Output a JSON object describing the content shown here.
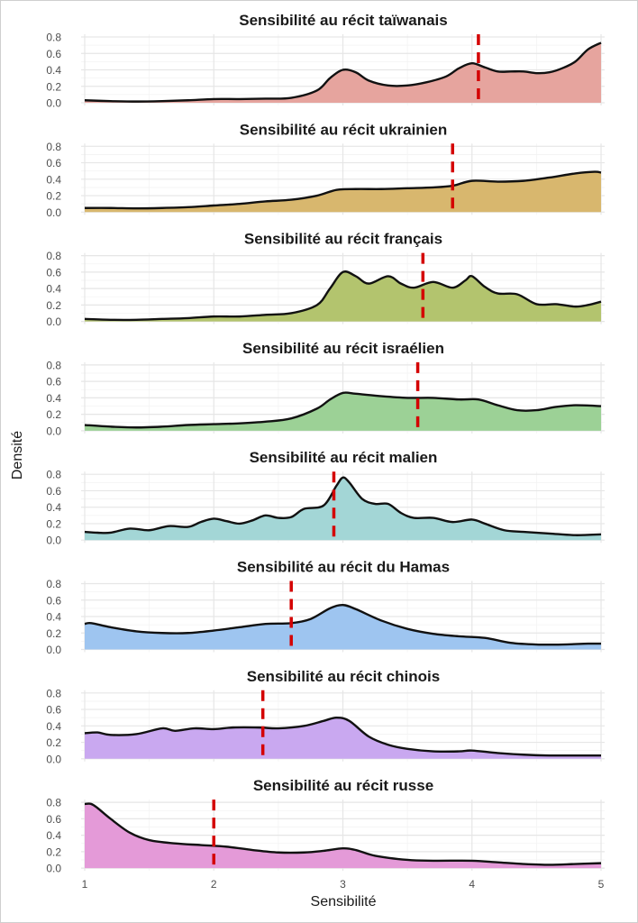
{
  "chart_data": {
    "type": "area",
    "xlabel": "Sensibilité",
    "ylabel": "Densité",
    "xlim": [
      1,
      5
    ],
    "ylim": [
      0,
      0.8
    ],
    "x_ticks": [
      "1",
      "2",
      "3",
      "4",
      "5"
    ],
    "y_ticks": [
      "0.0",
      "0.2",
      "0.4",
      "0.6",
      "0.8"
    ],
    "grid": true,
    "panels": [
      {
        "title": "Sensibilité au récit taïwanais",
        "fill": "#E6A49E",
        "mean_line": 4.05,
        "points": [
          [
            1.0,
            0.03
          ],
          [
            1.2,
            0.02
          ],
          [
            1.4,
            0.015
          ],
          [
            1.6,
            0.02
          ],
          [
            1.8,
            0.03
          ],
          [
            2.0,
            0.045
          ],
          [
            2.2,
            0.045
          ],
          [
            2.4,
            0.05
          ],
          [
            2.6,
            0.06
          ],
          [
            2.8,
            0.15
          ],
          [
            2.9,
            0.3
          ],
          [
            3.0,
            0.4
          ],
          [
            3.1,
            0.37
          ],
          [
            3.2,
            0.27
          ],
          [
            3.35,
            0.21
          ],
          [
            3.5,
            0.21
          ],
          [
            3.65,
            0.25
          ],
          [
            3.8,
            0.32
          ],
          [
            3.9,
            0.42
          ],
          [
            4.0,
            0.48
          ],
          [
            4.1,
            0.43
          ],
          [
            4.2,
            0.38
          ],
          [
            4.3,
            0.38
          ],
          [
            4.4,
            0.38
          ],
          [
            4.5,
            0.36
          ],
          [
            4.6,
            0.37
          ],
          [
            4.7,
            0.42
          ],
          [
            4.8,
            0.5
          ],
          [
            4.9,
            0.65
          ],
          [
            5.0,
            0.73
          ]
        ]
      },
      {
        "title": "Sensibilité au récit ukrainien",
        "fill": "#D8B76E",
        "mean_line": 3.85,
        "points": [
          [
            1.0,
            0.05
          ],
          [
            1.2,
            0.05
          ],
          [
            1.4,
            0.045
          ],
          [
            1.6,
            0.05
          ],
          [
            1.8,
            0.06
          ],
          [
            2.0,
            0.08
          ],
          [
            2.2,
            0.1
          ],
          [
            2.4,
            0.13
          ],
          [
            2.6,
            0.15
          ],
          [
            2.8,
            0.2
          ],
          [
            2.95,
            0.27
          ],
          [
            3.1,
            0.28
          ],
          [
            3.3,
            0.28
          ],
          [
            3.5,
            0.29
          ],
          [
            3.7,
            0.3
          ],
          [
            3.85,
            0.32
          ],
          [
            4.0,
            0.38
          ],
          [
            4.2,
            0.37
          ],
          [
            4.4,
            0.38
          ],
          [
            4.6,
            0.42
          ],
          [
            4.8,
            0.47
          ],
          [
            4.95,
            0.49
          ],
          [
            5.0,
            0.48
          ]
        ]
      },
      {
        "title": "Sensibilité au récit français",
        "fill": "#B3C46E",
        "mean_line": 3.62,
        "points": [
          [
            1.0,
            0.03
          ],
          [
            1.2,
            0.02
          ],
          [
            1.4,
            0.02
          ],
          [
            1.6,
            0.03
          ],
          [
            1.8,
            0.04
          ],
          [
            2.0,
            0.06
          ],
          [
            2.2,
            0.06
          ],
          [
            2.4,
            0.08
          ],
          [
            2.6,
            0.1
          ],
          [
            2.8,
            0.2
          ],
          [
            2.9,
            0.4
          ],
          [
            3.0,
            0.6
          ],
          [
            3.1,
            0.55
          ],
          [
            3.2,
            0.46
          ],
          [
            3.35,
            0.55
          ],
          [
            3.45,
            0.46
          ],
          [
            3.55,
            0.41
          ],
          [
            3.7,
            0.48
          ],
          [
            3.85,
            0.41
          ],
          [
            3.95,
            0.5
          ],
          [
            4.0,
            0.55
          ],
          [
            4.1,
            0.42
          ],
          [
            4.2,
            0.34
          ],
          [
            4.35,
            0.33
          ],
          [
            4.5,
            0.21
          ],
          [
            4.65,
            0.21
          ],
          [
            4.8,
            0.18
          ],
          [
            4.9,
            0.2
          ],
          [
            5.0,
            0.24
          ]
        ]
      },
      {
        "title": "Sensibilité au récit israélien",
        "fill": "#9CD196",
        "mean_line": 3.58,
        "points": [
          [
            1.0,
            0.07
          ],
          [
            1.2,
            0.05
          ],
          [
            1.4,
            0.04
          ],
          [
            1.6,
            0.05
          ],
          [
            1.8,
            0.07
          ],
          [
            2.0,
            0.08
          ],
          [
            2.2,
            0.09
          ],
          [
            2.4,
            0.11
          ],
          [
            2.6,
            0.15
          ],
          [
            2.8,
            0.27
          ],
          [
            2.9,
            0.38
          ],
          [
            3.0,
            0.46
          ],
          [
            3.1,
            0.45
          ],
          [
            3.3,
            0.42
          ],
          [
            3.5,
            0.4
          ],
          [
            3.7,
            0.4
          ],
          [
            3.9,
            0.38
          ],
          [
            4.05,
            0.38
          ],
          [
            4.2,
            0.31
          ],
          [
            4.35,
            0.25
          ],
          [
            4.5,
            0.25
          ],
          [
            4.65,
            0.29
          ],
          [
            4.8,
            0.31
          ],
          [
            5.0,
            0.3
          ]
        ]
      },
      {
        "title": "Sensibilité au récit malien",
        "fill": "#A3D6D6",
        "mean_line": 2.93,
        "points": [
          [
            1.0,
            0.1
          ],
          [
            1.1,
            0.09
          ],
          [
            1.2,
            0.09
          ],
          [
            1.35,
            0.14
          ],
          [
            1.5,
            0.12
          ],
          [
            1.65,
            0.17
          ],
          [
            1.8,
            0.16
          ],
          [
            1.9,
            0.22
          ],
          [
            2.0,
            0.26
          ],
          [
            2.1,
            0.23
          ],
          [
            2.2,
            0.2
          ],
          [
            2.3,
            0.24
          ],
          [
            2.4,
            0.3
          ],
          [
            2.5,
            0.27
          ],
          [
            2.6,
            0.28
          ],
          [
            2.7,
            0.38
          ],
          [
            2.85,
            0.42
          ],
          [
            2.95,
            0.66
          ],
          [
            3.0,
            0.76
          ],
          [
            3.05,
            0.7
          ],
          [
            3.15,
            0.5
          ],
          [
            3.25,
            0.44
          ],
          [
            3.35,
            0.44
          ],
          [
            3.45,
            0.33
          ],
          [
            3.55,
            0.27
          ],
          [
            3.7,
            0.27
          ],
          [
            3.85,
            0.22
          ],
          [
            4.0,
            0.25
          ],
          [
            4.1,
            0.2
          ],
          [
            4.25,
            0.12
          ],
          [
            4.4,
            0.1
          ],
          [
            4.6,
            0.08
          ],
          [
            4.8,
            0.06
          ],
          [
            5.0,
            0.07
          ]
        ]
      },
      {
        "title": "Sensibilité au récit du Hamas",
        "fill": "#9EC5F0",
        "mean_line": 2.6,
        "points": [
          [
            1.0,
            0.31
          ],
          [
            1.05,
            0.32
          ],
          [
            1.2,
            0.27
          ],
          [
            1.4,
            0.22
          ],
          [
            1.6,
            0.2
          ],
          [
            1.8,
            0.2
          ],
          [
            2.0,
            0.23
          ],
          [
            2.2,
            0.27
          ],
          [
            2.4,
            0.31
          ],
          [
            2.6,
            0.32
          ],
          [
            2.75,
            0.37
          ],
          [
            2.9,
            0.5
          ],
          [
            3.0,
            0.54
          ],
          [
            3.1,
            0.49
          ],
          [
            3.3,
            0.35
          ],
          [
            3.5,
            0.25
          ],
          [
            3.7,
            0.19
          ],
          [
            3.9,
            0.16
          ],
          [
            4.1,
            0.14
          ],
          [
            4.3,
            0.08
          ],
          [
            4.5,
            0.06
          ],
          [
            4.7,
            0.06
          ],
          [
            4.9,
            0.07
          ],
          [
            5.0,
            0.07
          ]
        ]
      },
      {
        "title": "Sensibilité au récit chinois",
        "fill": "#C9A8F0",
        "mean_line": 2.38,
        "points": [
          [
            1.0,
            0.31
          ],
          [
            1.1,
            0.32
          ],
          [
            1.2,
            0.29
          ],
          [
            1.4,
            0.3
          ],
          [
            1.6,
            0.37
          ],
          [
            1.7,
            0.34
          ],
          [
            1.85,
            0.37
          ],
          [
            2.0,
            0.36
          ],
          [
            2.15,
            0.38
          ],
          [
            2.35,
            0.38
          ],
          [
            2.5,
            0.37
          ],
          [
            2.7,
            0.4
          ],
          [
            2.85,
            0.46
          ],
          [
            2.95,
            0.5
          ],
          [
            3.05,
            0.46
          ],
          [
            3.2,
            0.27
          ],
          [
            3.35,
            0.17
          ],
          [
            3.5,
            0.12
          ],
          [
            3.7,
            0.09
          ],
          [
            3.9,
            0.09
          ],
          [
            4.0,
            0.1
          ],
          [
            4.2,
            0.07
          ],
          [
            4.4,
            0.05
          ],
          [
            4.6,
            0.04
          ],
          [
            4.8,
            0.04
          ],
          [
            5.0,
            0.04
          ]
        ]
      },
      {
        "title": "Sensibilité au récit russe",
        "fill": "#E49AD8",
        "mean_line": 2.0,
        "points": [
          [
            1.0,
            0.78
          ],
          [
            1.05,
            0.78
          ],
          [
            1.1,
            0.73
          ],
          [
            1.2,
            0.6
          ],
          [
            1.35,
            0.43
          ],
          [
            1.5,
            0.34
          ],
          [
            1.7,
            0.3
          ],
          [
            1.9,
            0.28
          ],
          [
            2.1,
            0.26
          ],
          [
            2.3,
            0.22
          ],
          [
            2.5,
            0.19
          ],
          [
            2.7,
            0.19
          ],
          [
            2.85,
            0.21
          ],
          [
            3.0,
            0.24
          ],
          [
            3.1,
            0.22
          ],
          [
            3.25,
            0.15
          ],
          [
            3.5,
            0.1
          ],
          [
            3.7,
            0.09
          ],
          [
            4.0,
            0.09
          ],
          [
            4.2,
            0.07
          ],
          [
            4.4,
            0.05
          ],
          [
            4.6,
            0.04
          ],
          [
            4.8,
            0.05
          ],
          [
            5.0,
            0.06
          ]
        ]
      }
    ]
  }
}
